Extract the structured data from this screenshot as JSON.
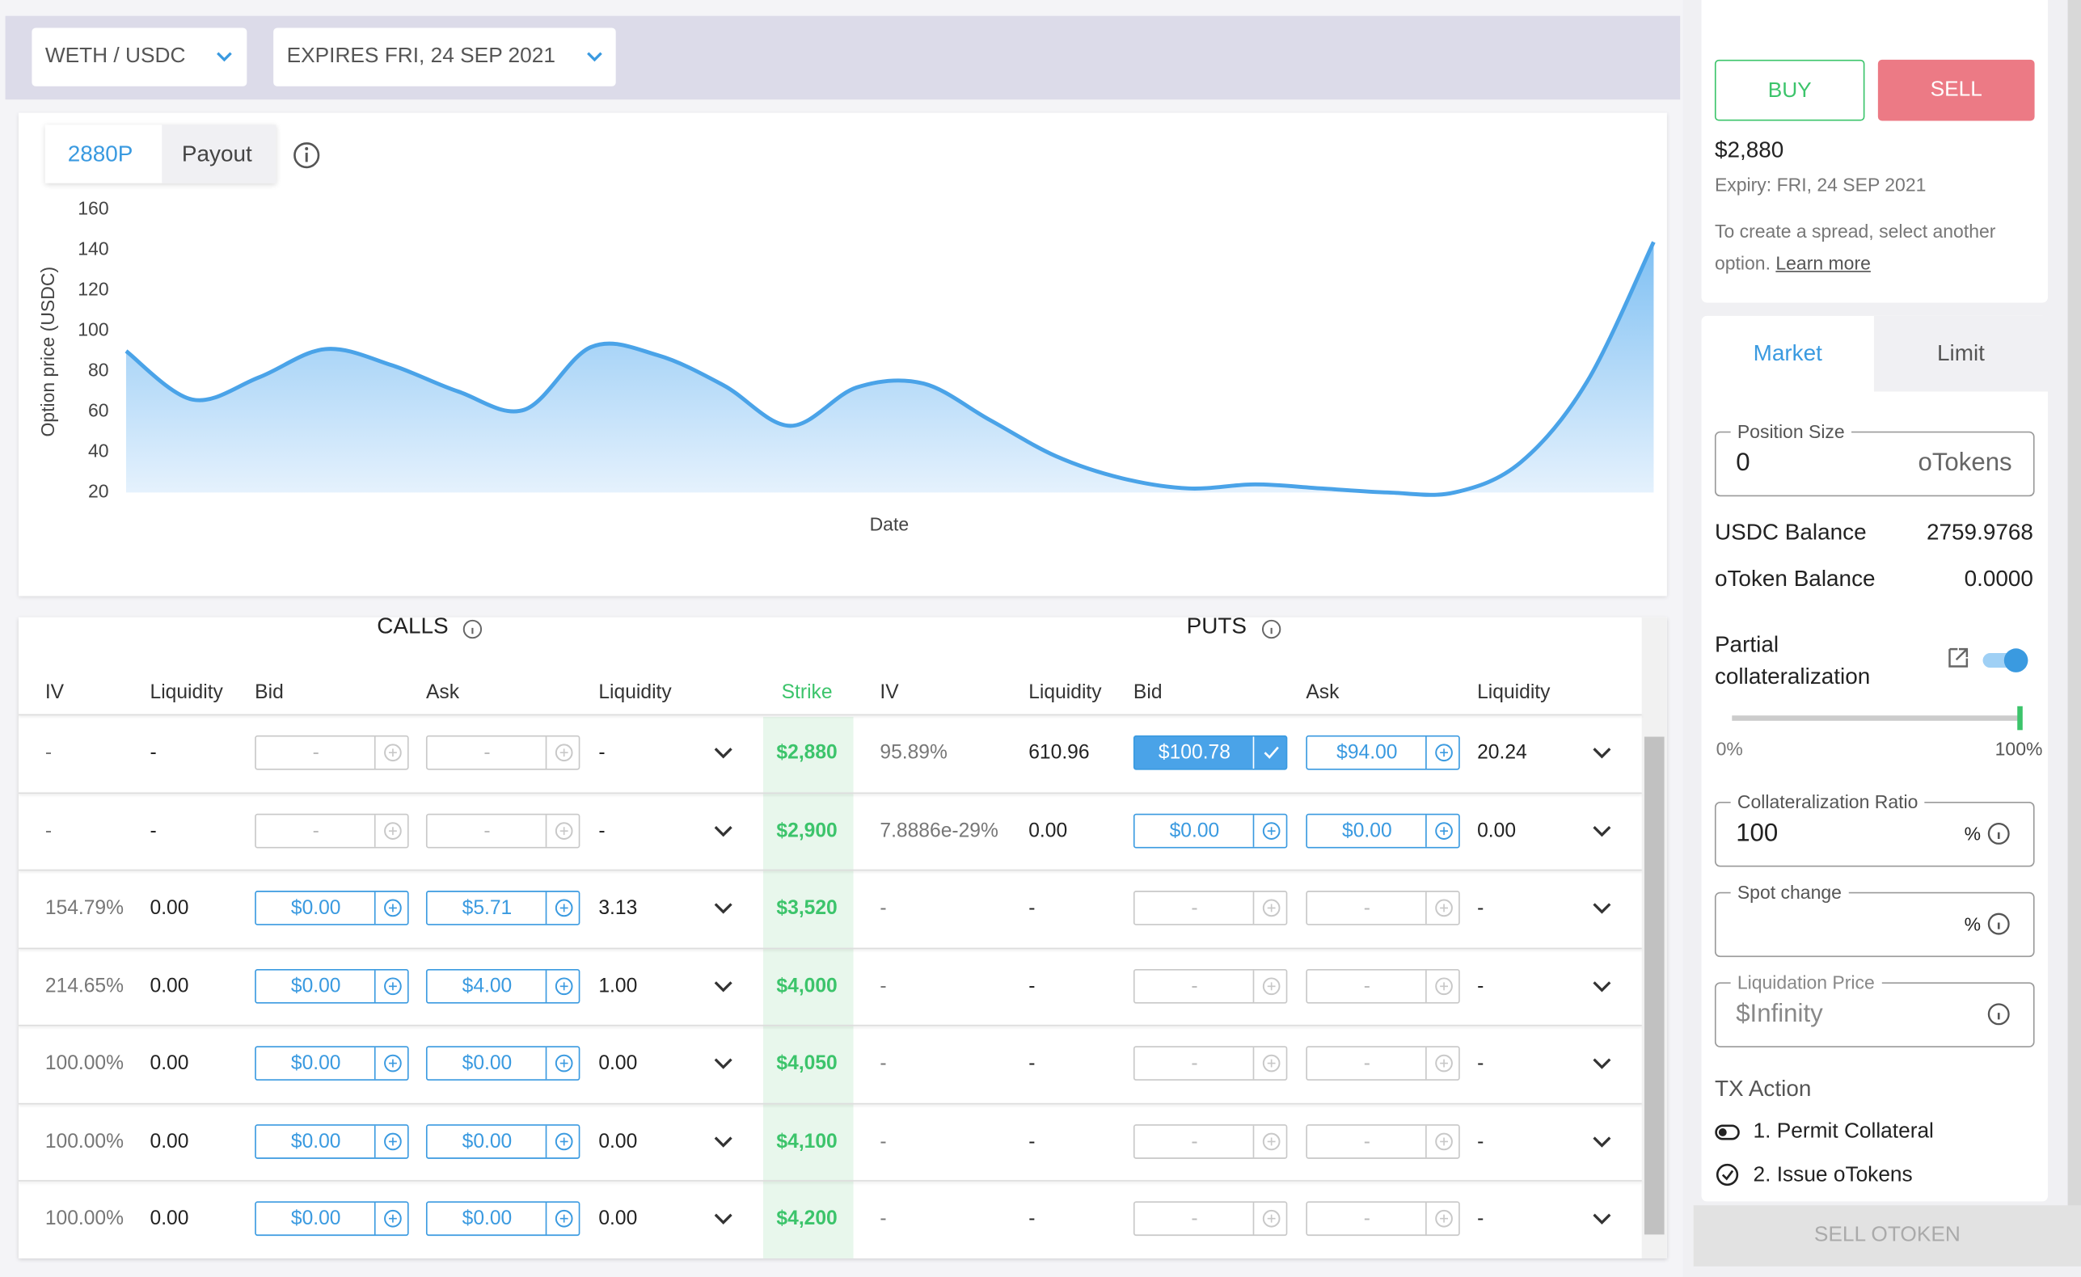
{
  "header": {
    "pair": "WETH / USDC",
    "expiry": "EXPIRES FRI, 24 SEP 2021"
  },
  "chart_data": {
    "type": "area",
    "tabs": [
      "2880P",
      "Payout"
    ],
    "y_label": "Option price (USDC)",
    "x_label": "Date",
    "color": "#4aa3e8",
    "values": [
      90,
      66,
      77,
      91,
      83,
      70,
      61,
      92,
      88,
      73,
      53,
      72,
      74,
      56,
      38,
      27,
      22,
      24,
      22,
      20,
      20,
      35,
      75,
      144
    ],
    "ylim": [
      20,
      160
    ],
    "yticks": [
      20,
      40,
      60,
      80,
      100,
      120,
      140,
      160
    ]
  },
  "table": {
    "calls_title": "CALLS",
    "puts_title": "PUTS",
    "columns": [
      "IV",
      "Liquidity",
      "Bid",
      "Ask",
      "Liquidity",
      "Strike",
      "IV",
      "Liquidity",
      "Bid",
      "Ask",
      "Liquidity"
    ],
    "rows": [
      [
        "-",
        "-",
        "-",
        "-",
        "-",
        "$2,880",
        "95.89%",
        "610.96",
        "$100.78",
        "$94.00",
        "20.24"
      ],
      [
        "-",
        "-",
        "-",
        "-",
        "-",
        "$2,900",
        "7.8886e-29%",
        "0.00",
        "$0.00",
        "$0.00",
        "0.00"
      ],
      [
        "154.79%",
        "0.00",
        "$0.00",
        "$5.71",
        "3.13",
        "$3,520",
        "-",
        "-",
        "-",
        "-",
        "-"
      ],
      [
        "214.65%",
        "0.00",
        "$0.00",
        "$4.00",
        "1.00",
        "$4,000",
        "-",
        "-",
        "-",
        "-",
        "-"
      ],
      [
        "100.00%",
        "0.00",
        "$0.00",
        "$0.00",
        "0.00",
        "$4,050",
        "-",
        "-",
        "-",
        "-",
        "-"
      ],
      [
        "100.00%",
        "0.00",
        "$0.00",
        "$0.00",
        "0.00",
        "$4,100",
        "-",
        "-",
        "-",
        "-",
        "-"
      ],
      [
        "100.00%",
        "0.00",
        "$0.00",
        "$0.00",
        "0.00",
        "$4,200",
        "-",
        "-",
        "-",
        "-",
        "-"
      ]
    ]
  },
  "sidebar": {
    "buy": "BUY",
    "sell": "SELL",
    "price": "$2,880",
    "expiry": "Expiry: FRI, 24 SEP 2021",
    "spread_note": "To create a spread, select another option.",
    "learn_more": "Learn more",
    "tabs": [
      "Market",
      "Limit"
    ],
    "position_size_label": "Position Size",
    "position_size": "0",
    "position_unit": "oTokens",
    "usdc_balance_label": "USDC Balance",
    "usdc_balance": "2759.9768",
    "otoken_balance_label": "oToken Balance",
    "otoken_balance": "0.0000",
    "partial_label": "Partial collateralization",
    "slider_min": "0%",
    "slider_max": "100%",
    "ratio_label": "Collateralization Ratio",
    "ratio": "100",
    "percent": "%",
    "spot_label": "Spot change",
    "liq_label": "Liquidation Price",
    "liq_value": "$Infinity",
    "tx_title": "TX Action",
    "tx_steps": [
      "1. Permit Collateral",
      "2. Issue oTokens"
    ],
    "submit": "SELL OTOKEN"
  }
}
